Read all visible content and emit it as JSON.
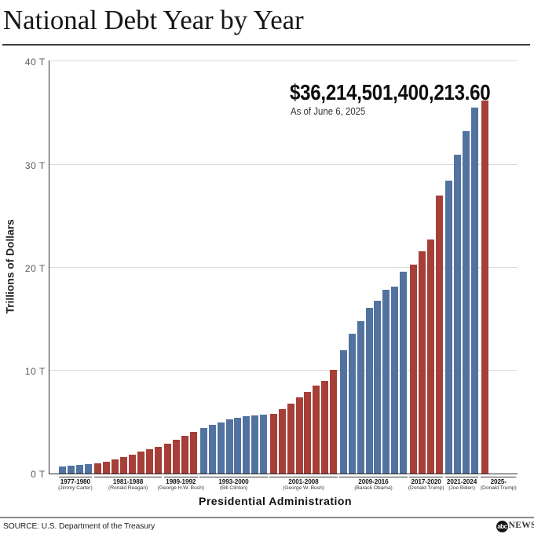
{
  "title": "National Debt Year by Year",
  "annotation": {
    "debt_value": "$36,214,501,400,213.60",
    "as_of": "As of June 6, 2025"
  },
  "y_axis": {
    "title": "Trillions of Dollars",
    "ticks": [
      {
        "label": "0 T",
        "value": 0
      },
      {
        "label": "10 T",
        "value": 10
      },
      {
        "label": "20 T",
        "value": 20
      },
      {
        "label": "30 T",
        "value": 30
      },
      {
        "label": "40 T",
        "value": 40
      }
    ]
  },
  "x_axis": {
    "title": "Presidential Administration"
  },
  "footer": {
    "source": "SOURCE: U.S. Department of the Treasury",
    "logo_abc": "abc",
    "logo_news": "NEWS"
  },
  "colors": {
    "democrat_bar": "#52739f",
    "republican_bar": "#a63f38"
  },
  "chart_data": {
    "type": "bar",
    "title": "National Debt Year by Year",
    "xlabel": "Presidential Administration",
    "ylabel": "Trillions of Dollars",
    "ylim": [
      0,
      40
    ],
    "grid": "horizontal",
    "x": [
      1977,
      1978,
      1979,
      1980,
      1981,
      1982,
      1983,
      1984,
      1985,
      1986,
      1987,
      1988,
      1989,
      1990,
      1991,
      1992,
      1993,
      1994,
      1995,
      1996,
      1997,
      1998,
      1999,
      2000,
      2001,
      2002,
      2003,
      2004,
      2005,
      2006,
      2007,
      2008,
      2009,
      2010,
      2011,
      2012,
      2013,
      2014,
      2015,
      2016,
      2017,
      2018,
      2019,
      2020,
      2021,
      2022,
      2023,
      2024,
      2025
    ],
    "values": [
      0.7,
      0.78,
      0.83,
      0.91,
      1.0,
      1.14,
      1.38,
      1.57,
      1.82,
      2.13,
      2.35,
      2.6,
      2.86,
      3.23,
      3.67,
      4.06,
      4.41,
      4.69,
      4.97,
      5.22,
      5.41,
      5.53,
      5.66,
      5.67,
      5.81,
      6.23,
      6.78,
      7.38,
      7.93,
      8.51,
      9.01,
      10.02,
      11.91,
      13.56,
      14.79,
      16.07,
      16.74,
      17.82,
      18.15,
      19.57,
      20.24,
      21.52,
      22.72,
      26.95,
      28.43,
      30.93,
      33.17,
      35.46,
      36.21
    ],
    "groups": [
      {
        "years": "1977-1980",
        "president_label": "(Jimmy Carter)",
        "party": "democrat",
        "bar_count": 4
      },
      {
        "years": "1981-1988",
        "president_label": "(Ronald Reagan)",
        "party": "republican",
        "bar_count": 8
      },
      {
        "years": "1989-1992",
        "president_label": "(George H.W. Bush)",
        "party": "republican",
        "bar_count": 4
      },
      {
        "years": "1993-2000",
        "president_label": "(Bill Clinton)",
        "party": "democrat",
        "bar_count": 8
      },
      {
        "years": "2001-2008",
        "president_label": "(George W. Bush)",
        "party": "republican",
        "bar_count": 8
      },
      {
        "years": "2009-2016",
        "president_label": "(Barack Obama)",
        "party": "democrat",
        "bar_count": 8
      },
      {
        "years": "2017-2020",
        "president_label": "(Donald Trump)",
        "party": "republican",
        "bar_count": 4
      },
      {
        "years": "2021-2024",
        "president_label": "(Joe Biden)",
        "party": "democrat",
        "bar_count": 4
      },
      {
        "years": "2025-",
        "president_label": "(Donald Trump)",
        "party": "republican",
        "bar_count": 1
      }
    ]
  }
}
